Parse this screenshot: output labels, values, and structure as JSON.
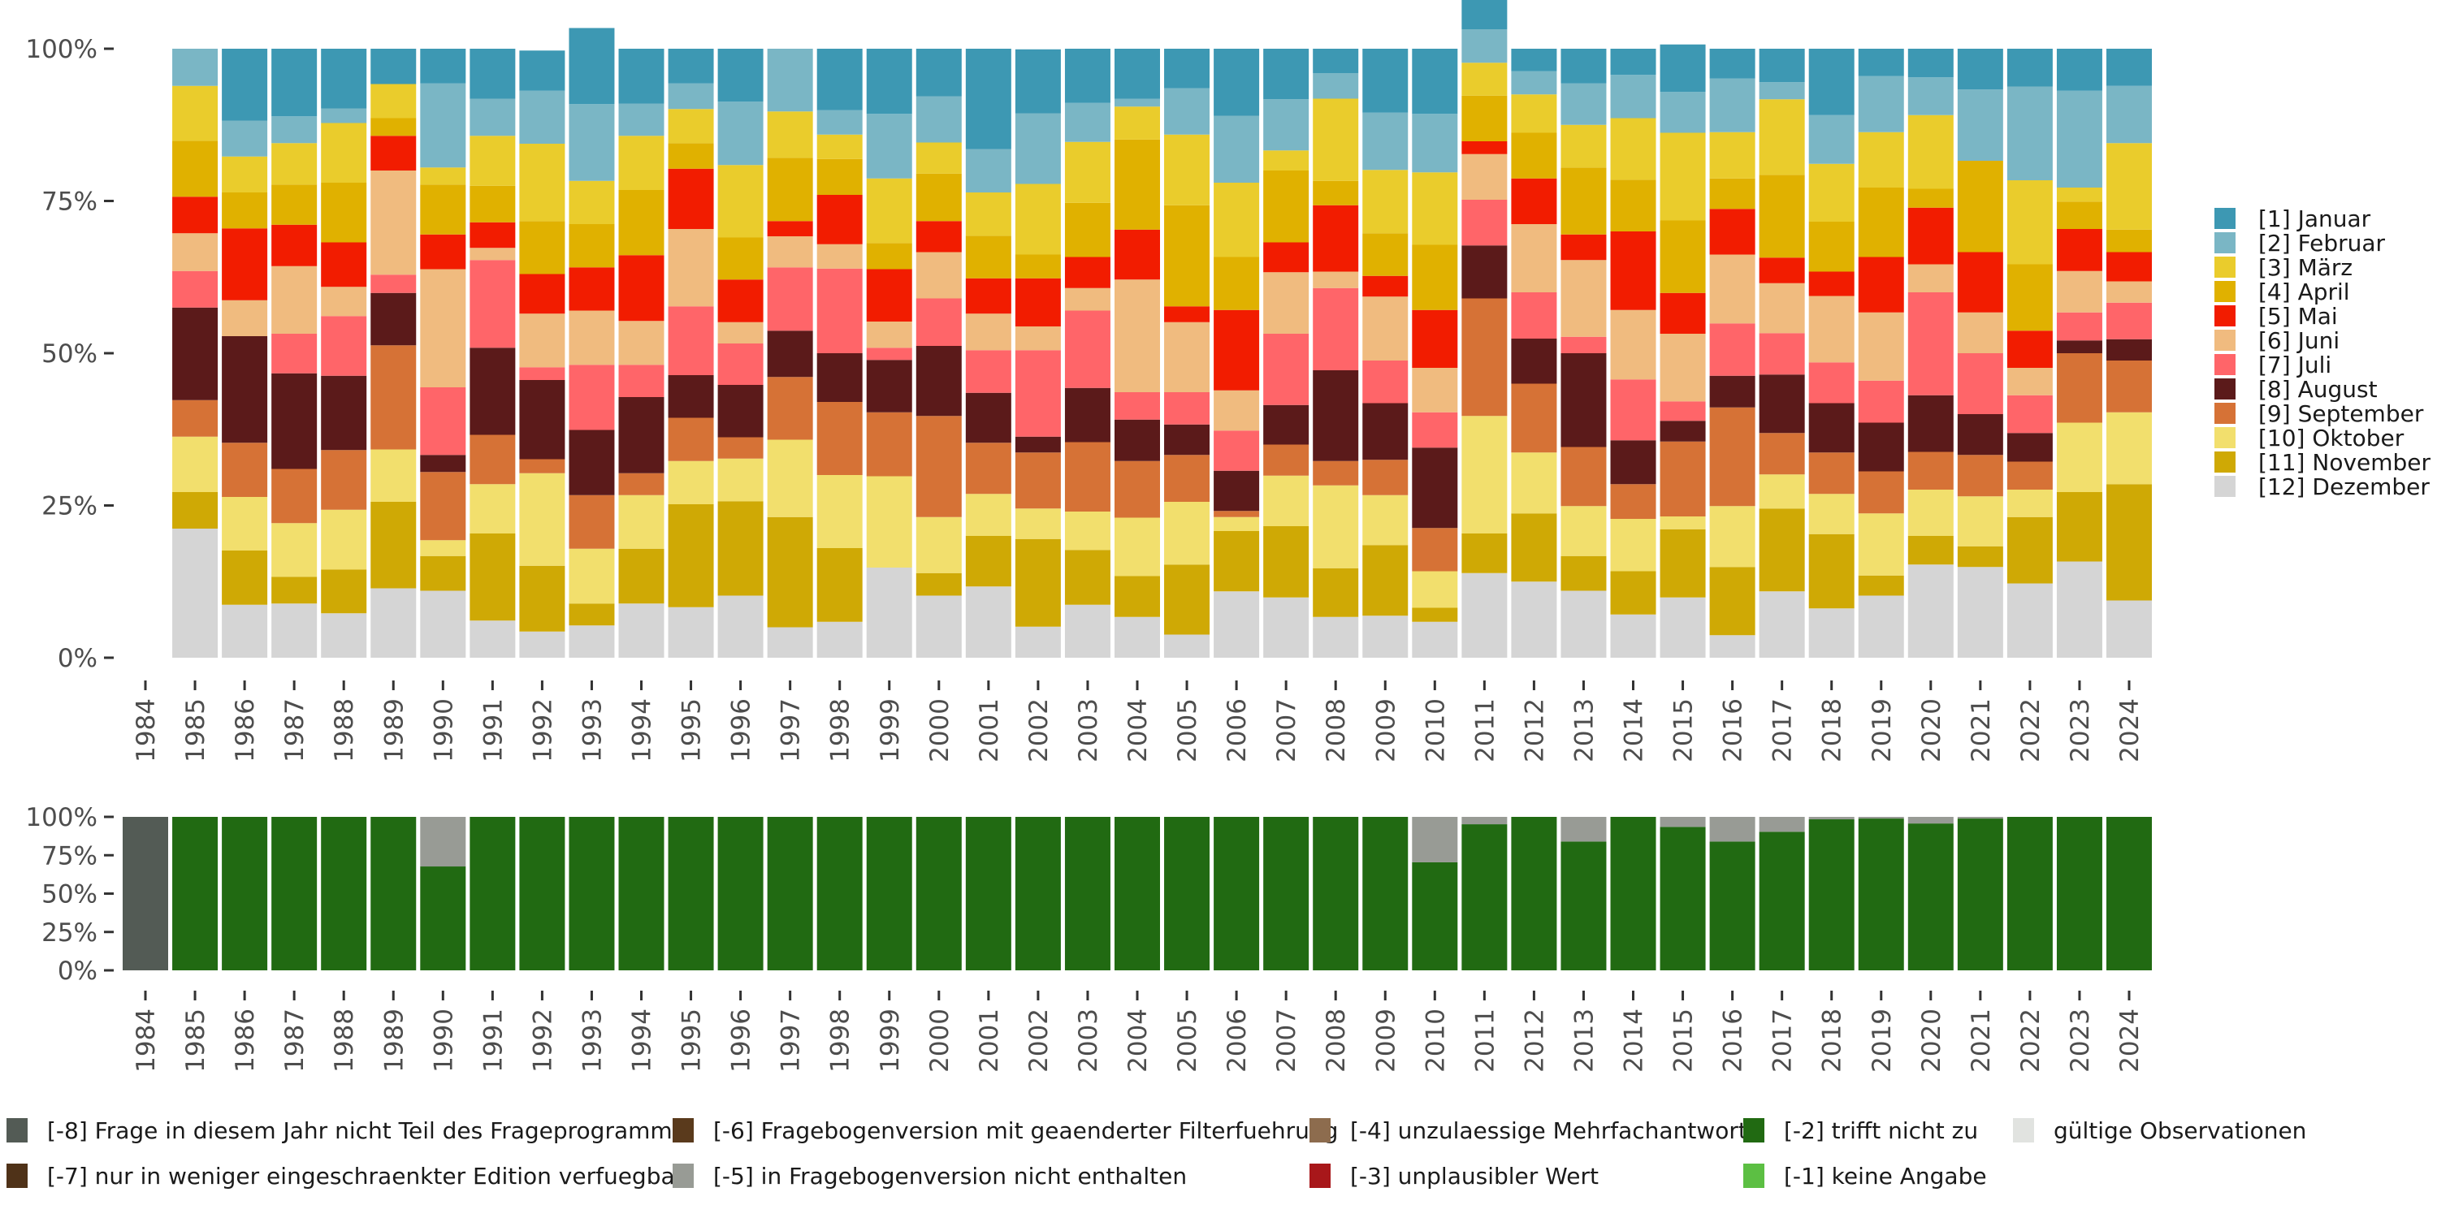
{
  "chart_data": [
    {
      "type": "bar",
      "stacked": true,
      "normalized": true,
      "title": "",
      "xlabel": "",
      "ylabel": "",
      "ylim": [
        0,
        100
      ],
      "yticks": [
        "0%",
        "25%",
        "50%",
        "75%",
        "100%"
      ],
      "legend_position": "right",
      "categories": [
        "1984",
        "1985",
        "1986",
        "1987",
        "1988",
        "1989",
        "1990",
        "1991",
        "1992",
        "1993",
        "1994",
        "1995",
        "1996",
        "1997",
        "1998",
        "1999",
        "2000",
        "2001",
        "2002",
        "2003",
        "2004",
        "2005",
        "2006",
        "2007",
        "2008",
        "2009",
        "2010",
        "2011",
        "2012",
        "2013",
        "2014",
        "2015",
        "2016",
        "2017",
        "2018",
        "2019",
        "2020",
        "2021",
        "2022",
        "2023",
        "2024"
      ],
      "series_order_bottom_to_top": [
        "[12] Dezember",
        "[11] November",
        "[10] Oktober",
        "[9] September",
        "[8] August",
        "[7] Juli",
        "[6] Juni",
        "[5] Mai",
        "[4] April",
        "[3] März",
        "[2] Februar",
        "[1] Januar"
      ],
      "series": [
        {
          "name": "[1] Januar",
          "color": "#3d98b3",
          "values": [
            null,
            0.0,
            11.8,
            11.1,
            9.8,
            5.8,
            5.7,
            8.2,
            6.6,
            12.5,
            9.0,
            5.7,
            8.7,
            0.0,
            10.1,
            10.7,
            7.8,
            16.5,
            10.5,
            8.9,
            8.2,
            6.5,
            11.0,
            8.3,
            4.0,
            10.5,
            10.7,
            7.5,
            3.7,
            5.7,
            4.3,
            7.8,
            4.9,
            5.5,
            10.9,
            4.5,
            4.7,
            6.7,
            6.2,
            6.9,
            6.1
          ]
        },
        {
          "name": "[2] Februar",
          "color": "#7ab6c5",
          "values": [
            null,
            6.1,
            5.9,
            4.4,
            2.4,
            0.0,
            13.8,
            6.1,
            8.7,
            12.6,
            5.3,
            4.2,
            10.4,
            10.3,
            4.0,
            10.6,
            7.6,
            7.1,
            11.6,
            6.4,
            1.3,
            7.6,
            11.0,
            8.4,
            4.2,
            9.4,
            9.6,
            5.5,
            3.8,
            6.8,
            7.1,
            6.7,
            8.8,
            2.8,
            8.0,
            9.2,
            6.2,
            11.7,
            15.4,
            15.9,
            9.4
          ]
        },
        {
          "name": "[3] März",
          "color": "#eacc2c",
          "values": [
            null,
            9.0,
            5.9,
            6.8,
            9.8,
            5.6,
            2.8,
            8.2,
            12.7,
            7.1,
            8.9,
            5.6,
            11.9,
            7.6,
            4.0,
            10.6,
            5.1,
            7.1,
            11.6,
            10.0,
            5.4,
            11.6,
            12.2,
            3.3,
            13.5,
            10.4,
            11.9,
            5.4,
            6.3,
            7.0,
            10.1,
            14.4,
            7.6,
            12.4,
            9.5,
            9.1,
            12.1,
            0.0,
            13.8,
            2.3,
            14.2
          ]
        },
        {
          "name": "[4] April",
          "color": "#e0b100",
          "values": [
            null,
            9.2,
            5.9,
            6.6,
            9.8,
            2.9,
            8.2,
            6.0,
            8.7,
            7.1,
            10.7,
            4.2,
            6.9,
            10.4,
            5.9,
            4.3,
            7.8,
            7.0,
            3.9,
            8.9,
            14.8,
            16.6,
            8.7,
            11.8,
            4.0,
            7.0,
            10.7,
            7.5,
            7.5,
            11.0,
            8.5,
            11.9,
            5.0,
            13.6,
            8.2,
            11.4,
            3.1,
            15.0,
            10.9,
            4.5,
            3.7
          ]
        },
        {
          "name": "[5] Mai",
          "color": "#f21c00",
          "values": [
            null,
            6.0,
            11.8,
            6.8,
            7.3,
            5.7,
            5.7,
            4.2,
            6.5,
            7.1,
            10.8,
            9.9,
            7.0,
            2.5,
            8.1,
            8.6,
            5.1,
            5.8,
            7.9,
            5.1,
            8.2,
            2.6,
            13.2,
            4.9,
            10.9,
            3.4,
            9.5,
            2.1,
            7.5,
            4.2,
            12.9,
            6.7,
            7.5,
            4.2,
            4.0,
            9.1,
            9.3,
            9.9,
            6.1,
            6.9,
            4.8
          ]
        },
        {
          "name": "[6] Juni",
          "color": "#f0bb7f",
          "values": [
            null,
            6.2,
            5.9,
            11.1,
            4.8,
            17.1,
            19.4,
            2.0,
            8.8,
            8.9,
            7.2,
            12.7,
            3.5,
            5.1,
            4.0,
            4.3,
            7.6,
            6.0,
            3.9,
            3.7,
            18.5,
            11.5,
            6.6,
            10.1,
            2.7,
            10.5,
            7.3,
            7.5,
            11.2,
            12.6,
            11.4,
            11.1,
            11.3,
            8.2,
            10.9,
            11.2,
            4.6,
            6.7,
            4.5,
            6.8,
            3.5
          ]
        },
        {
          "name": "[7] Juli",
          "color": "#ff6569",
          "values": [
            null,
            6.0,
            0.0,
            6.5,
            9.8,
            3.0,
            11.1,
            14.4,
            2.1,
            10.7,
            5.3,
            11.3,
            6.8,
            10.4,
            13.9,
            2.0,
            7.8,
            7.0,
            14.2,
            12.7,
            4.5,
            5.3,
            6.6,
            11.7,
            13.5,
            7.0,
            5.8,
            7.5,
            7.6,
            2.7,
            10.0,
            3.2,
            8.6,
            6.8,
            6.7,
            6.9,
            16.9,
            10.0,
            6.2,
            4.6,
            6.0
          ]
        },
        {
          "name": "[8] August",
          "color": "#5b1a1a",
          "values": [
            null,
            15.2,
            17.5,
            15.7,
            12.2,
            8.6,
            2.8,
            14.3,
            13.0,
            10.7,
            12.5,
            7.0,
            8.6,
            7.6,
            8.0,
            8.6,
            11.5,
            8.2,
            2.6,
            8.9,
            6.8,
            5.0,
            6.6,
            6.5,
            14.9,
            9.3,
            13.2,
            8.7,
            7.4,
            15.4,
            7.2,
            3.4,
            5.2,
            9.6,
            8.1,
            8.0,
            9.3,
            6.7,
            4.7,
            2.1,
            3.5
          ]
        },
        {
          "name": "[9] September",
          "color": "#d67236",
          "values": [
            null,
            6.0,
            8.9,
            8.9,
            9.8,
            17.1,
            11.2,
            8.1,
            2.3,
            8.8,
            3.6,
            7.1,
            3.5,
            10.3,
            12.0,
            10.5,
            16.6,
            8.4,
            9.2,
            11.4,
            9.3,
            7.7,
            1.0,
            5.1,
            4.0,
            5.8,
            7.1,
            19.3,
            11.3,
            9.7,
            5.7,
            12.3,
            16.2,
            6.8,
            6.8,
            6.9,
            6.2,
            6.8,
            4.6,
            11.4,
            8.5
          ]
        },
        {
          "name": "[10] Oktober",
          "color": "#f2df6d",
          "values": [
            null,
            9.1,
            8.8,
            8.8,
            9.8,
            8.6,
            2.6,
            8.1,
            15.2,
            9.0,
            8.8,
            7.1,
            7.0,
            12.7,
            12.0,
            15.0,
            9.2,
            6.9,
            5.0,
            6.3,
            9.6,
            10.3,
            2.3,
            8.3,
            13.6,
            8.2,
            6.0,
            19.3,
            10.0,
            8.2,
            8.6,
            2.1,
            10.0,
            5.6,
            6.6,
            10.2,
            7.6,
            8.2,
            4.5,
            11.4,
            11.8
          ]
        },
        {
          "name": "[11] November",
          "color": "#cfa905",
          "values": [
            null,
            6.0,
            8.9,
            4.4,
            7.2,
            14.2,
            5.7,
            14.3,
            10.8,
            3.6,
            9.0,
            16.9,
            15.5,
            18.1,
            12.1,
            0.0,
            3.7,
            8.3,
            14.4,
            9.0,
            6.7,
            11.5,
            9.9,
            11.7,
            8.0,
            11.6,
            2.3,
            6.5,
            11.2,
            5.7,
            7.1,
            11.2,
            11.2,
            13.6,
            12.2,
            3.3,
            4.7,
            3.4,
            10.9,
            11.4,
            19.1
          ]
        },
        {
          "name": "[12] Dezember",
          "color": "#d5d5d5",
          "values": [
            null,
            21.2,
            8.7,
            8.9,
            7.3,
            11.4,
            11.0,
            6.1,
            4.3,
            5.3,
            8.9,
            8.3,
            10.2,
            5.0,
            5.9,
            14.8,
            10.2,
            11.7,
            5.1,
            8.7,
            6.7,
            3.8,
            10.9,
            9.9,
            6.7,
            6.9,
            5.9,
            13.9,
            12.5,
            11.0,
            7.1,
            9.9,
            3.7,
            10.9,
            8.1,
            10.2,
            15.3,
            14.9,
            12.2,
            15.8,
            9.4
          ]
        }
      ]
    },
    {
      "type": "bar",
      "stacked": true,
      "normalized": true,
      "title": "",
      "xlabel": "",
      "ylabel": "",
      "ylim": [
        0,
        100
      ],
      "yticks": [
        "0%",
        "25%",
        "50%",
        "75%",
        "100%"
      ],
      "legend_position": "bottom",
      "categories": [
        "1984",
        "1985",
        "1986",
        "1987",
        "1988",
        "1989",
        "1990",
        "1991",
        "1992",
        "1993",
        "1994",
        "1995",
        "1996",
        "1997",
        "1998",
        "1999",
        "2000",
        "2001",
        "2002",
        "2003",
        "2004",
        "2005",
        "2006",
        "2007",
        "2008",
        "2009",
        "2010",
        "2011",
        "2012",
        "2013",
        "2014",
        "2015",
        "2016",
        "2017",
        "2018",
        "2019",
        "2020",
        "2021",
        "2022",
        "2023",
        "2024"
      ],
      "series": [
        {
          "name": "[-8] Frage in diesem Jahr nicht Teil des Frageprogramms",
          "color": "#535b55",
          "values": [
            100,
            0,
            0,
            0,
            0,
            0,
            0,
            0,
            0,
            0,
            0,
            0,
            0,
            0,
            0,
            0,
            0,
            0,
            0,
            0,
            0,
            0,
            0,
            0,
            0,
            0,
            0,
            0,
            0,
            0,
            0,
            0,
            0,
            0,
            0,
            0,
            0,
            0,
            0,
            0,
            0
          ]
        },
        {
          "name": "[-2] trifft nicht zu",
          "color": "#216a12",
          "values": [
            0,
            100,
            100,
            100,
            100,
            100,
            67.7,
            100,
            100,
            100,
            100,
            100,
            100,
            100,
            100,
            100,
            100,
            100,
            100,
            100,
            100,
            100,
            100,
            100,
            100,
            100,
            70.4,
            95.2,
            100,
            83.9,
            100,
            93.5,
            83.9,
            90.3,
            98.4,
            98.9,
            95.7,
            98.9,
            100,
            100,
            100
          ]
        },
        {
          "name": "[-5] in Fragebogenversion nicht enthalten",
          "color": "#989b95",
          "values": [
            0,
            0,
            0,
            0,
            0,
            0,
            32.3,
            0,
            0,
            0,
            0,
            0,
            0,
            0,
            0,
            0,
            0,
            0,
            0,
            0,
            0,
            0,
            0,
            0,
            0,
            0,
            29.6,
            4.8,
            0,
            16.1,
            0,
            6.5,
            16.1,
            9.7,
            1.6,
            1.1,
            4.3,
            1.1,
            0,
            0,
            0
          ]
        }
      ]
    }
  ],
  "legend_right": {
    "items": [
      {
        "label": "[1] Januar",
        "color": "#3d98b3"
      },
      {
        "label": "[2] Februar",
        "color": "#7ab6c5"
      },
      {
        "label": "[3] März",
        "color": "#eacc2c"
      },
      {
        "label": "[4] April",
        "color": "#e0b100"
      },
      {
        "label": "[5] Mai",
        "color": "#f21c00"
      },
      {
        "label": "[6] Juni",
        "color": "#f0bb7f"
      },
      {
        "label": "[7] Juli",
        "color": "#ff6569"
      },
      {
        "label": "[8] August",
        "color": "#5b1a1a"
      },
      {
        "label": "[9] September",
        "color": "#d67236"
      },
      {
        "label": "[10] Oktober",
        "color": "#f2df6d"
      },
      {
        "label": "[11] November",
        "color": "#cfa905"
      },
      {
        "label": "[12] Dezember",
        "color": "#d5d5d5"
      }
    ]
  },
  "legend_bottom": {
    "items": [
      {
        "label": "[-8] Frage in diesem Jahr nicht Teil des Frageprogramms",
        "color": "#535b55"
      },
      {
        "label": "[-7] nur in weniger eingeschraenkter Edition verfuegbar",
        "color": "#4f3218"
      },
      {
        "label": "[-6] Fragebogenversion mit geaenderter Filterfuehrung",
        "color": "#5a3a1c"
      },
      {
        "label": "[-5] in Fragebogenversion nicht enthalten",
        "color": "#989b95"
      },
      {
        "label": "[-4] unzulaessige Mehrfachantwort",
        "color": "#8d6c4e"
      },
      {
        "label": "[-3] unplausibler Wert",
        "color": "#a8171a"
      },
      {
        "label": "[-2] trifft nicht zu",
        "color": "#216a12"
      },
      {
        "label": "[-1] keine Angabe",
        "color": "#5cbf43"
      },
      {
        "label": "gültige Observationen",
        "color": "#e1e3e0"
      }
    ]
  }
}
